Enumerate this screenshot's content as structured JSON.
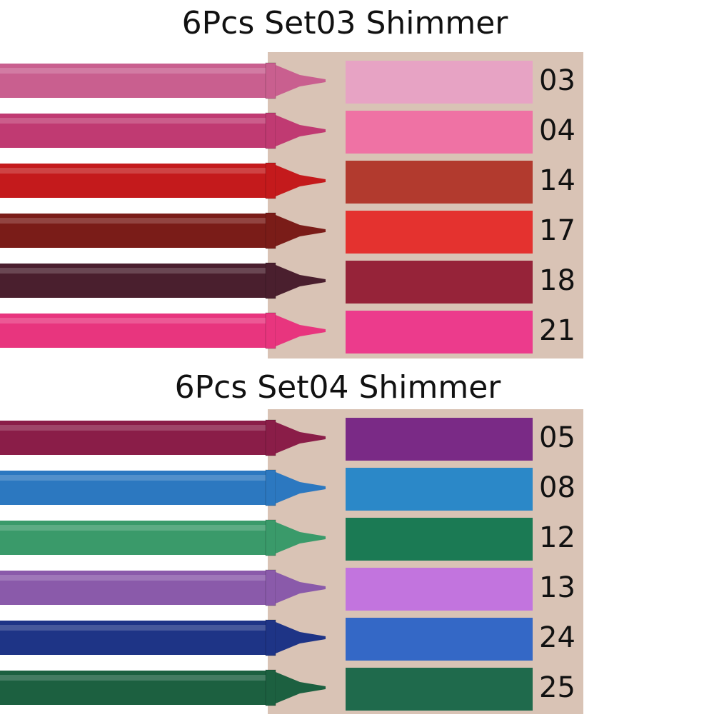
{
  "sets": [
    {
      "title": "6Pcs Set03 Shimmer",
      "items": [
        {
          "code": "03",
          "pencil_color": "#c95f8f",
          "swatch_color": "#e7a3c4"
        },
        {
          "code": "04",
          "pencil_color": "#c03a72",
          "swatch_color": "#ef72a4"
        },
        {
          "code": "14",
          "pencil_color": "#c41a1c",
          "swatch_color": "#b23a2e"
        },
        {
          "code": "17",
          "pencil_color": "#7a1c18",
          "swatch_color": "#e4322f"
        },
        {
          "code": "18",
          "pencil_color": "#4a1f2e",
          "swatch_color": "#962339"
        },
        {
          "code": "21",
          "pencil_color": "#e8357e",
          "swatch_color": "#ec3b8c"
        }
      ]
    },
    {
      "title": "6Pcs Set04 Shimmer",
      "items": [
        {
          "code": "05",
          "pencil_color": "#8a1d48",
          "swatch_color": "#7a2a86"
        },
        {
          "code": "08",
          "pencil_color": "#2c78c0",
          "swatch_color": "#2b88c8"
        },
        {
          "code": "12",
          "pencil_color": "#3a9a6a",
          "swatch_color": "#1b7a54"
        },
        {
          "code": "13",
          "pencil_color": "#8a5aaa",
          "swatch_color": "#c274de"
        },
        {
          "code": "24",
          "pencil_color": "#1e3486",
          "swatch_color": "#3468c6"
        },
        {
          "code": "25",
          "pencil_color": "#1c6040",
          "swatch_color": "#1f6a4c"
        }
      ]
    }
  ]
}
